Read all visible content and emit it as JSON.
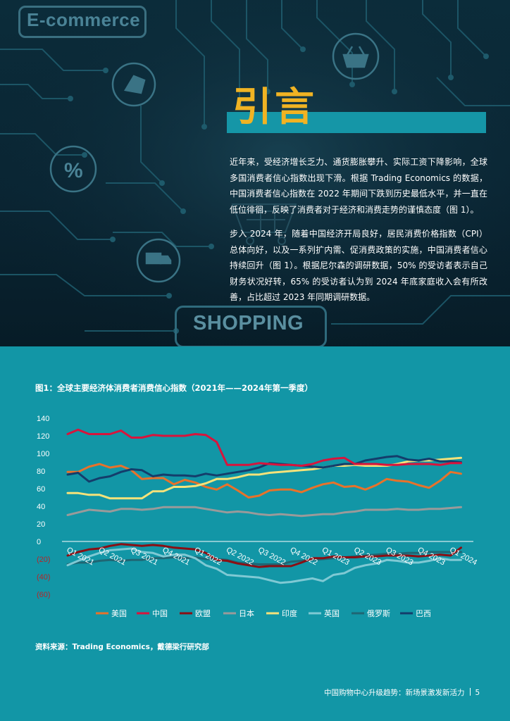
{
  "hero": {
    "ecommerce_label": "E-commerce",
    "shopping_label": "SHOPPING",
    "title": "引言",
    "paragraphs": [
      "近年来，受经济增长乏力、通货膨胀攀升、实际工资下降影响，全球多国消费者信心指数出现下滑。根据 Trading Economics 的数据，中国消费者信心指数在 2022 年期间下跌到历史最低水平，并一直在低位徘徊，反映了消费者对于经济和消费走势的谨慎态度（图 1）。",
      "步入 2024 年，随着中国经济开局良好，居民消费价格指数（CPI）总体向好，以及一系列扩内需、促消费政策的实施，中国消费者信心持续回升（图 1）。根据尼尔森的调研数据，50% 的受访者表示自己财务状况好转，65% 的受访者认为到 2024 年底家庭收入会有所改善，占比超过 2023 年同期调研数据。"
    ]
  },
  "chart_title": "图1：全球主要经济体消费者消费信心指数（2021年——2024年第一季度）",
  "source": "资料来源：Trading Economics，戴德梁行研究部",
  "footer": {
    "text": "中国购物中心升级趋势：新场景激发新活力",
    "page": "5"
  },
  "chart_data": {
    "type": "line",
    "title": "图1：全球主要经济体消费者消费信心指数（2021年——2024年第一季度）",
    "y_ticks": [
      "140",
      "120",
      "100",
      "80",
      "60",
      "40",
      "20",
      "0",
      "(20)",
      "(40)",
      "(60)"
    ],
    "ylim": [
      -60,
      140
    ],
    "x_labels": [
      "Q1 2021",
      "Q2 2021",
      "Q3 2021",
      "Q4 2021",
      "Q1 2022",
      "Q2 2022",
      "Q3 2022",
      "Q4 2022",
      "Q1 2023",
      "Q2 2023",
      "Q3 2023",
      "Q4 2023",
      "Q1 2024"
    ],
    "x_range": [
      0,
      12
    ],
    "legend_position": "bottom",
    "series": [
      {
        "name": "美国",
        "color": "#e8722a",
        "values": [
          [
            0,
            79
          ],
          [
            0.33,
            79
          ],
          [
            0.67,
            85
          ],
          [
            1,
            88
          ],
          [
            1.33,
            84
          ],
          [
            1.67,
            86
          ],
          [
            2,
            81
          ],
          [
            2.33,
            71
          ],
          [
            2.67,
            72
          ],
          [
            3,
            72
          ],
          [
            3.33,
            65
          ],
          [
            3.67,
            70
          ],
          [
            4,
            67
          ],
          [
            4.33,
            62
          ],
          [
            4.67,
            59
          ],
          [
            5,
            65
          ],
          [
            5.33,
            58
          ],
          [
            5.67,
            50
          ],
          [
            6,
            52
          ],
          [
            6.33,
            58
          ],
          [
            6.67,
            59
          ],
          [
            7,
            59
          ],
          [
            7.33,
            56
          ],
          [
            7.67,
            61
          ],
          [
            8,
            65
          ],
          [
            8.33,
            67
          ],
          [
            8.67,
            62
          ],
          [
            9,
            63
          ],
          [
            9.33,
            59
          ],
          [
            9.67,
            64
          ],
          [
            10,
            71
          ],
          [
            10.33,
            69
          ],
          [
            10.67,
            68
          ],
          [
            11,
            64
          ],
          [
            11.33,
            61
          ],
          [
            11.67,
            69
          ],
          [
            12,
            79
          ],
          [
            12.33,
            77
          ]
        ]
      },
      {
        "name": "中国",
        "color": "#d8143c",
        "values": [
          [
            0,
            122
          ],
          [
            0.33,
            127
          ],
          [
            0.67,
            122
          ],
          [
            1,
            122
          ],
          [
            1.33,
            122
          ],
          [
            1.67,
            126
          ],
          [
            2,
            118
          ],
          [
            2.33,
            118
          ],
          [
            2.67,
            121
          ],
          [
            3,
            120
          ],
          [
            3.33,
            120
          ],
          [
            3.67,
            120
          ],
          [
            4,
            122
          ],
          [
            4.33,
            121
          ],
          [
            4.67,
            113
          ],
          [
            5,
            87
          ],
          [
            5.33,
            87
          ],
          [
            5.67,
            87
          ],
          [
            6,
            89
          ],
          [
            6.33,
            88
          ],
          [
            6.67,
            87
          ],
          [
            7,
            87
          ],
          [
            7.33,
            86
          ],
          [
            7.67,
            88
          ],
          [
            8,
            92
          ],
          [
            8.33,
            94
          ],
          [
            8.67,
            95
          ],
          [
            9,
            88
          ],
          [
            9.33,
            88
          ],
          [
            9.67,
            88
          ],
          [
            10,
            87
          ],
          [
            10.33,
            87
          ],
          [
            10.67,
            88
          ],
          [
            11,
            88
          ],
          [
            11.33,
            88
          ],
          [
            11.67,
            87
          ],
          [
            12,
            89
          ],
          [
            12.33,
            89
          ]
        ]
      },
      {
        "name": "欧盟",
        "color": "#8a0f14",
        "values": [
          [
            0,
            -16
          ],
          [
            0.33,
            -12
          ],
          [
            0.67,
            -9
          ],
          [
            1,
            -8
          ],
          [
            1.33,
            -5
          ],
          [
            1.67,
            -3
          ],
          [
            2,
            -4
          ],
          [
            2.33,
            -5
          ],
          [
            2.67,
            -4
          ],
          [
            3,
            -5
          ],
          [
            3.33,
            -7
          ],
          [
            3.67,
            -8
          ],
          [
            4,
            -9
          ],
          [
            4.33,
            -13
          ],
          [
            4.67,
            -21
          ],
          [
            5,
            -22
          ],
          [
            5.33,
            -25
          ],
          [
            5.67,
            -27
          ],
          [
            6,
            -29
          ],
          [
            6.33,
            -28
          ],
          [
            6.67,
            -28
          ],
          [
            7,
            -28
          ],
          [
            7.33,
            -24
          ],
          [
            7.67,
            -19
          ],
          [
            8,
            -19
          ],
          [
            8.33,
            -17
          ],
          [
            8.67,
            -18
          ],
          [
            9,
            -18
          ],
          [
            9.33,
            -17
          ],
          [
            9.67,
            -17
          ],
          [
            10,
            -16
          ],
          [
            10.33,
            -16
          ],
          [
            10.67,
            -16
          ],
          [
            11,
            -17
          ],
          [
            11.33,
            -16
          ],
          [
            11.67,
            -15
          ],
          [
            12,
            -16
          ],
          [
            12.33,
            -7
          ]
        ]
      },
      {
        "name": "日本",
        "color": "#9a9a9a",
        "values": [
          [
            0,
            30
          ],
          [
            0.33,
            33
          ],
          [
            0.67,
            36
          ],
          [
            1,
            35
          ],
          [
            1.33,
            34
          ],
          [
            1.67,
            37
          ],
          [
            2,
            37
          ],
          [
            2.33,
            36
          ],
          [
            2.67,
            37
          ],
          [
            3,
            39
          ],
          [
            3.33,
            39
          ],
          [
            3.67,
            39
          ],
          [
            4,
            39
          ],
          [
            4.33,
            37
          ],
          [
            4.67,
            35
          ],
          [
            5,
            33
          ],
          [
            5.33,
            34
          ],
          [
            5.67,
            33
          ],
          [
            6,
            31
          ],
          [
            6.33,
            30
          ],
          [
            6.67,
            31
          ],
          [
            7,
            30
          ],
          [
            7.33,
            29
          ],
          [
            7.67,
            30
          ],
          [
            8,
            31
          ],
          [
            8.33,
            31
          ],
          [
            8.67,
            33
          ],
          [
            9,
            34
          ],
          [
            9.33,
            36
          ],
          [
            9.67,
            36
          ],
          [
            10,
            36
          ],
          [
            10.33,
            37
          ],
          [
            10.67,
            36
          ],
          [
            11,
            36
          ],
          [
            11.33,
            37
          ],
          [
            11.67,
            37
          ],
          [
            12,
            38
          ],
          [
            12.33,
            39
          ]
        ]
      },
      {
        "name": "印度",
        "color": "#f5e27a",
        "values": [
          [
            0,
            55
          ],
          [
            0.33,
            55
          ],
          [
            0.67,
            53
          ],
          [
            1,
            53
          ],
          [
            1.33,
            49
          ],
          [
            1.67,
            49
          ],
          [
            2,
            49
          ],
          [
            2.33,
            49
          ],
          [
            2.67,
            57
          ],
          [
            3,
            57
          ],
          [
            3.33,
            62
          ],
          [
            3.67,
            62
          ],
          [
            4,
            63
          ],
          [
            4.33,
            66
          ],
          [
            4.67,
            71
          ],
          [
            5,
            71
          ],
          [
            5.33,
            73
          ],
          [
            5.67,
            76
          ],
          [
            6,
            76
          ],
          [
            6.33,
            78
          ],
          [
            6.67,
            79
          ],
          [
            7,
            80
          ],
          [
            7.33,
            81
          ],
          [
            7.67,
            82
          ],
          [
            8,
            84
          ],
          [
            8.33,
            86
          ],
          [
            8.67,
            86
          ],
          [
            9,
            87
          ],
          [
            9.33,
            86
          ],
          [
            9.67,
            86
          ],
          [
            10,
            86
          ],
          [
            10.33,
            88
          ],
          [
            10.67,
            91
          ],
          [
            11,
            92
          ],
          [
            11.33,
            92
          ],
          [
            11.67,
            93
          ],
          [
            12,
            94
          ],
          [
            12.33,
            95
          ]
        ]
      },
      {
        "name": "英国",
        "color": "#7fc9d4",
        "values": [
          [
            0,
            -27
          ],
          [
            0.33,
            -22
          ],
          [
            0.67,
            -17
          ],
          [
            1,
            -13
          ],
          [
            1.33,
            -10
          ],
          [
            1.67,
            -9
          ],
          [
            2,
            -8
          ],
          [
            2.33,
            -12
          ],
          [
            2.67,
            -13
          ],
          [
            3,
            -17
          ],
          [
            3.33,
            -15
          ],
          [
            3.67,
            -15
          ],
          [
            4,
            -19
          ],
          [
            4.33,
            -27
          ],
          [
            4.67,
            -31
          ],
          [
            5,
            -38
          ],
          [
            5.33,
            -39
          ],
          [
            5.67,
            -40
          ],
          [
            6,
            -41
          ],
          [
            6.33,
            -44
          ],
          [
            6.67,
            -47
          ],
          [
            7,
            -46
          ],
          [
            7.33,
            -44
          ],
          [
            7.67,
            -42
          ],
          [
            8,
            -45
          ],
          [
            8.33,
            -38
          ],
          [
            8.67,
            -36
          ],
          [
            9,
            -30
          ],
          [
            9.33,
            -27
          ],
          [
            9.67,
            -25
          ],
          [
            10,
            -21
          ],
          [
            10.33,
            -22
          ],
          [
            10.67,
            -24
          ],
          [
            11,
            -24
          ],
          [
            11.33,
            -22
          ],
          [
            11.67,
            -19
          ],
          [
            12,
            -21
          ],
          [
            12.33,
            -21
          ]
        ]
      },
      {
        "name": "俄罗斯",
        "color": "#1f6674",
        "values": [
          [
            0,
            -26
          ],
          [
            0.33,
            -24
          ],
          [
            0.67,
            -24
          ],
          [
            1,
            -22
          ],
          [
            1.33,
            -21
          ],
          [
            1.67,
            -22
          ],
          [
            2,
            -21
          ],
          [
            2.33,
            -21
          ],
          [
            2.67,
            -19
          ],
          [
            3,
            -19
          ],
          [
            3.33,
            -18
          ],
          [
            3.67,
            -19
          ],
          [
            4,
            -18
          ],
          [
            4.33,
            -20
          ],
          [
            4.67,
            -20
          ],
          [
            5,
            -21
          ],
          [
            5.33,
            -24
          ],
          [
            5.67,
            -25
          ],
          [
            6,
            -26
          ],
          [
            6.33,
            -26
          ],
          [
            6.67,
            -26
          ],
          [
            7,
            -23
          ],
          [
            7.33,
            -22
          ],
          [
            7.67,
            -21
          ],
          [
            8,
            -20
          ],
          [
            8.33,
            -19
          ],
          [
            8.67,
            -18
          ],
          [
            9,
            -17
          ],
          [
            9.33,
            -16
          ],
          [
            9.67,
            -15
          ],
          [
            10,
            -14
          ],
          [
            10.33,
            -14
          ],
          [
            10.67,
            -13
          ],
          [
            11,
            -13
          ],
          [
            11.33,
            -12
          ],
          [
            11.67,
            -12
          ],
          [
            12,
            -12
          ],
          [
            12.33,
            -12
          ]
        ]
      },
      {
        "name": "巴西",
        "color": "#143d6b",
        "values": [
          [
            0,
            76
          ],
          [
            0.33,
            78
          ],
          [
            0.67,
            68
          ],
          [
            1,
            72
          ],
          [
            1.33,
            74
          ],
          [
            1.67,
            79
          ],
          [
            2,
            82
          ],
          [
            2.33,
            81
          ],
          [
            2.67,
            74
          ],
          [
            3,
            76
          ],
          [
            3.33,
            75
          ],
          [
            3.67,
            75
          ],
          [
            4,
            74
          ],
          [
            4.33,
            77
          ],
          [
            4.67,
            75
          ],
          [
            5,
            77
          ],
          [
            5.33,
            79
          ],
          [
            5.67,
            81
          ],
          [
            6,
            84
          ],
          [
            6.33,
            89
          ],
          [
            6.67,
            88
          ],
          [
            7,
            87
          ],
          [
            7.33,
            86
          ],
          [
            7.67,
            85
          ],
          [
            8,
            84
          ],
          [
            8.33,
            86
          ],
          [
            8.67,
            88
          ],
          [
            9,
            88
          ],
          [
            9.33,
            92
          ],
          [
            9.67,
            94
          ],
          [
            10,
            96
          ],
          [
            10.33,
            97
          ],
          [
            10.67,
            93
          ],
          [
            11,
            92
          ],
          [
            11.33,
            94
          ],
          [
            11.67,
            91
          ],
          [
            12,
            91
          ],
          [
            12.33,
            90
          ]
        ]
      }
    ]
  }
}
